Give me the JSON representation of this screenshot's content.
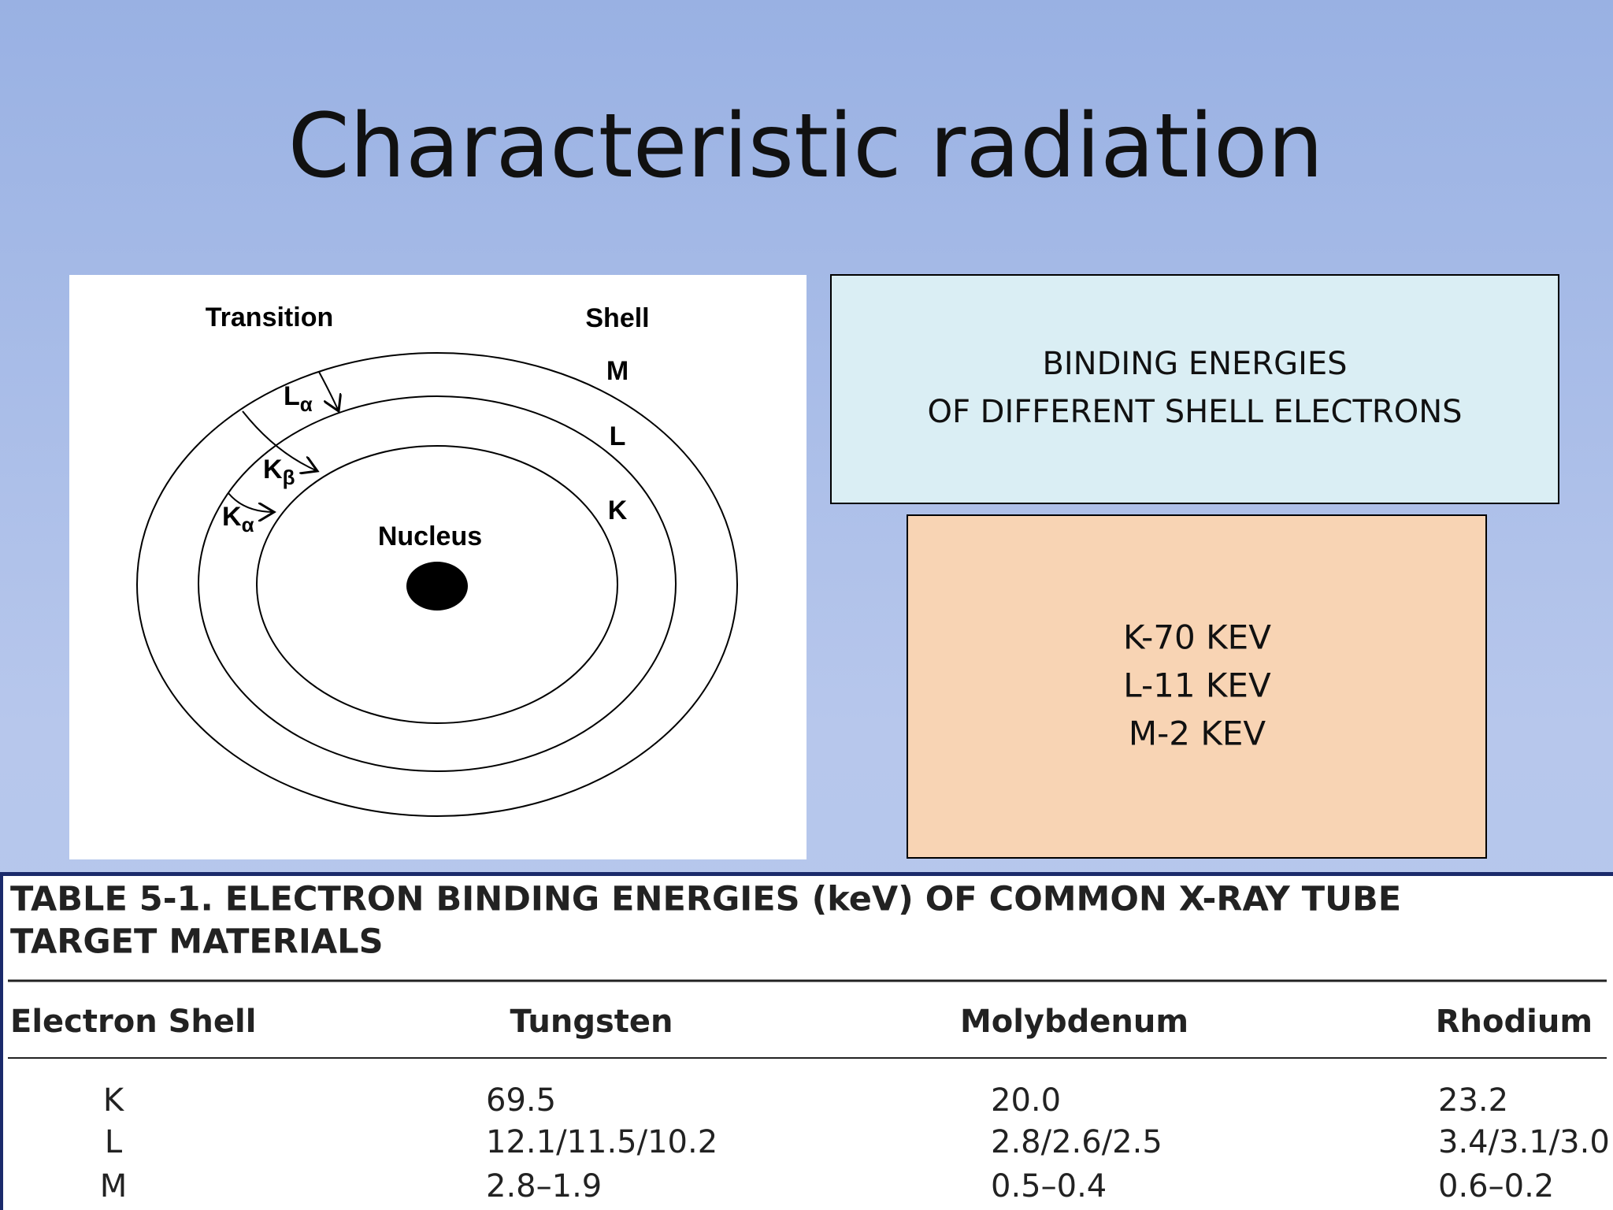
{
  "title": "Characteristic radiation",
  "diagram": {
    "transition_label": "Transition",
    "shell_label": "Shell",
    "shells": [
      "M",
      "L",
      "K"
    ],
    "transitions": [
      {
        "letter": "L",
        "sub": "α"
      },
      {
        "letter": "K",
        "sub": "β"
      },
      {
        "letter": "K",
        "sub": "α"
      }
    ],
    "nucleus": "Nucleus"
  },
  "box1": {
    "lines": [
      "BINDING ENERGIES",
      "OF DIFFERENT SHELL ELECTRONS"
    ]
  },
  "box2": {
    "lines": [
      "K-70 KEV",
      "L-11 KEV",
      "M-2 KEV"
    ]
  },
  "table": {
    "title_lines": [
      "TABLE 5-1.  ELECTRON BINDING ENERGIES (keV) OF COMMON X-RAY TUBE",
      "TARGET MATERIALS"
    ],
    "header": [
      "Electron Shell",
      "Tungsten",
      "Molybdenum",
      "Rhodium"
    ],
    "rows": [
      [
        "K",
        "69.5",
        "20.0",
        "23.2"
      ],
      [
        "L",
        "12.1/11.5/10.2",
        "2.8/2.6/2.5",
        "3.4/3.1/3.0"
      ],
      [
        "M",
        "2.8–1.9",
        "0.5–0.4",
        "0.6–0.2"
      ]
    ]
  }
}
